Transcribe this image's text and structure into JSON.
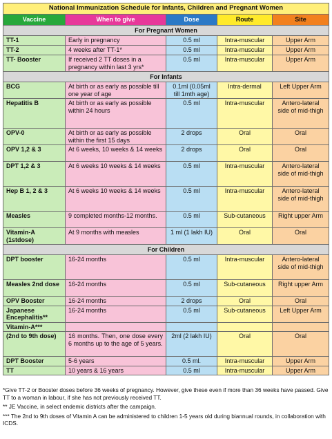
{
  "title": "National Immunization Schedule for Infants, Children and Pregnant Women",
  "headers": {
    "vaccine": "Vaccine",
    "when": "When to give",
    "dose": "Dose",
    "route": "Route",
    "site": "Site"
  },
  "sections": {
    "pregnant": "For Pregnant Women",
    "infants": "For Infants",
    "children": "For Children"
  },
  "pregnant_rows": [
    {
      "vaccine": "TT-1",
      "when": "Early in pregnancy",
      "dose": "0.5 ml",
      "route": "Intra-muscular",
      "site": "Upper Arm"
    },
    {
      "vaccine": "TT-2",
      "when": "4 weeks after TT-1*",
      "dose": "0.5 ml",
      "route": "Intra-muscular",
      "site": "Upper Arm"
    },
    {
      "vaccine": "TT- Booster",
      "when": "If received 2 TT doses in a pregnancy within last 3 yrs*",
      "dose": "0.5 ml",
      "route": "Intra-muscular",
      "site": "Upper Arm"
    }
  ],
  "infant_rows": [
    {
      "vaccine": "BCG",
      "when": "At birth or as early as possible till one year of age",
      "dose": "0.1ml (0.05ml till 1mth age)",
      "route": "Intra-dermal",
      "site": "Left Upper Arm"
    },
    {
      "vaccine": "Hepatitis B",
      "when": "At birth or as early as possible within 24 hours",
      "dose": "0.5 ml",
      "route": "Intra-muscular",
      "site": "Antero-lateral side of mid-thigh"
    },
    {
      "vaccine": "OPV-0",
      "when": "At birth or as early as possible within the first 15 days",
      "dose": "2 drops",
      "route": "Oral",
      "site": "Oral"
    },
    {
      "vaccine": "OPV 1,2 & 3",
      "when": "At 6 weeks, 10 weeks & 14 weeks",
      "dose": "2 drops",
      "route": "Oral",
      "site": "Oral"
    },
    {
      "vaccine": "DPT 1,2 & 3",
      "when": "At 6 weeks 10 weeks & 14 weeks",
      "dose": "0.5 ml",
      "route": "Intra-muscular",
      "site": "Antero-lateral side of mid-thigh"
    },
    {
      "vaccine": "Hep B 1, 2 & 3",
      "when": "At 6 weeks 10 weeks & 14 weeks",
      "dose": "0.5 ml",
      "route": "Intra-muscular",
      "site": "Antero-lateral side of mid-thigh"
    },
    {
      "vaccine": "Measles",
      "when": "9 completed months-12 months.",
      "dose": "0.5 ml",
      "route": "Sub-cutaneous",
      "site": "Right upper Arm"
    },
    {
      "vaccine": "Vitamin-A (1stdose)",
      "when": "At 9 months with measles",
      "dose": "1 ml (1 lakh IU)",
      "route": "Oral",
      "site": "Oral"
    }
  ],
  "child_rows": [
    {
      "vaccine": "DPT booster",
      "when": "16-24 months",
      "dose": "0.5 ml",
      "route": "Intra-muscular",
      "site": "Antero-lateral side of mid-thigh"
    },
    {
      "vaccine": "Measles 2nd dose",
      "when": "16-24 months",
      "dose": "0.5 ml",
      "route": "Sub-cutaneous",
      "site": "Right upper Arm"
    },
    {
      "vaccine": "OPV Booster",
      "when": "16-24 months",
      "dose": "2 drops",
      "route": "Oral",
      "site": "Oral"
    },
    {
      "vaccine": "Japanese Encephalitis**",
      "when": "16-24 months",
      "dose": "0.5 ml",
      "route": "Sub-cutaneous",
      "site": "Left Upper Arm"
    },
    {
      "vaccine": "Vitamin-A***",
      "when": "",
      "dose": "",
      "route": "",
      "site": ""
    },
    {
      "vaccine": "(2nd to 9th dose)",
      "when": "16 months. Then, one dose every 6 months up to the age of 5 years.",
      "dose": "2ml (2 lakh IU)",
      "route": "Oral",
      "site": "Oral"
    },
    {
      "vaccine": "DPT Booster",
      "when": "5-6 years",
      "dose": "0.5 ml.",
      "route": "Intra-muscular",
      "site": "Upper Arm"
    },
    {
      "vaccine": "TT",
      "when": "10 years & 16 years",
      "dose": "0.5 ml",
      "route": "Intra-muscular",
      "site": "Upper Arm"
    }
  ],
  "notes": [
    "*Give TT-2 or Booster doses before 36 weeks of pregnancy. However, give these even if more than 36 weeks have passed.  Give TT to a woman in labour, if she has not previously received TT.",
    "** JE Vaccine, in select endemic districts after the campaign.",
    "*** The 2nd to 9th doses of Vitamin A can be administered to children 1-5 years old during biannual rounds, in collaboration with ICDS."
  ]
}
